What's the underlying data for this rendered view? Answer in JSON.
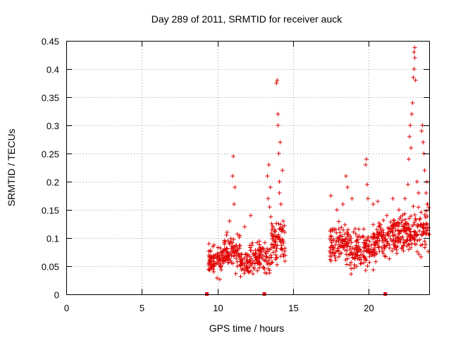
{
  "chart_data": {
    "type": "scatter",
    "title": "Day 289 of 2011, SRMTID for receiver auck",
    "xlabel": "GPS time / hours",
    "ylabel": "SRMTID / TECUs",
    "xlim": [
      0,
      24
    ],
    "ylim": [
      0,
      0.45
    ],
    "grid": true,
    "marker": "+",
    "marker_color": "#e00000",
    "x_ticks": [
      {
        "value": 0,
        "label": "0"
      },
      {
        "value": 5,
        "label": "5"
      },
      {
        "value": 10,
        "label": "10"
      },
      {
        "value": 15,
        "label": "15"
      },
      {
        "value": 20,
        "label": "20"
      }
    ],
    "y_ticks": [
      {
        "value": 0,
        "label": "0"
      },
      {
        "value": 0.05,
        "label": "0.05"
      },
      {
        "value": 0.1,
        "label": "0.1"
      },
      {
        "value": 0.15,
        "label": "0.15"
      },
      {
        "value": 0.2,
        "label": "0.2"
      },
      {
        "value": 0.25,
        "label": "0.25"
      },
      {
        "value": 0.3,
        "label": "0.3"
      },
      {
        "value": 0.35,
        "label": "0.35"
      },
      {
        "value": 0.4,
        "label": "0.4"
      },
      {
        "value": 0.45,
        "label": "0.45"
      }
    ],
    "gap_markers": [
      9.3,
      13.1,
      21.1
    ],
    "clusters": [
      {
        "x0": 9.4,
        "x1": 10.4,
        "n": 80,
        "base": 0.06,
        "spread": 0.04
      },
      {
        "x0": 10.4,
        "x1": 11.5,
        "n": 80,
        "base": 0.075,
        "spread": 0.045
      },
      {
        "x0": 11.5,
        "x1": 12.5,
        "n": 70,
        "base": 0.06,
        "spread": 0.04
      },
      {
        "x0": 12.5,
        "x1": 13.5,
        "n": 70,
        "base": 0.065,
        "spread": 0.04
      },
      {
        "x0": 13.5,
        "x1": 14.5,
        "n": 80,
        "base": 0.09,
        "spread": 0.06
      },
      {
        "x0": 17.4,
        "x1": 18.5,
        "n": 80,
        "base": 0.09,
        "spread": 0.05
      },
      {
        "x0": 18.5,
        "x1": 19.5,
        "n": 80,
        "base": 0.08,
        "spread": 0.05
      },
      {
        "x0": 19.5,
        "x1": 20.5,
        "n": 80,
        "base": 0.085,
        "spread": 0.05
      },
      {
        "x0": 20.5,
        "x1": 21.5,
        "n": 70,
        "base": 0.1,
        "spread": 0.05
      },
      {
        "x0": 21.5,
        "x1": 22.5,
        "n": 90,
        "base": 0.11,
        "spread": 0.05
      },
      {
        "x0": 22.5,
        "x1": 24.0,
        "n": 110,
        "base": 0.11,
        "spread": 0.06
      }
    ],
    "highlights": [
      {
        "x": 10.6,
        "y": 0.105
      },
      {
        "x": 10.8,
        "y": 0.13
      },
      {
        "x": 11.0,
        "y": 0.21
      },
      {
        "x": 11.05,
        "y": 0.245
      },
      {
        "x": 11.1,
        "y": 0.16
      },
      {
        "x": 11.15,
        "y": 0.19
      },
      {
        "x": 11.8,
        "y": 0.12
      },
      {
        "x": 12.2,
        "y": 0.14
      },
      {
        "x": 13.3,
        "y": 0.21
      },
      {
        "x": 13.35,
        "y": 0.17
      },
      {
        "x": 13.4,
        "y": 0.23
      },
      {
        "x": 13.45,
        "y": 0.155
      },
      {
        "x": 13.5,
        "y": 0.19
      },
      {
        "x": 13.9,
        "y": 0.375
      },
      {
        "x": 13.95,
        "y": 0.38
      },
      {
        "x": 14.0,
        "y": 0.32
      },
      {
        "x": 14.0,
        "y": 0.3
      },
      {
        "x": 14.05,
        "y": 0.25
      },
      {
        "x": 14.1,
        "y": 0.2
      },
      {
        "x": 14.1,
        "y": 0.18
      },
      {
        "x": 14.15,
        "y": 0.27
      },
      {
        "x": 14.2,
        "y": 0.16
      },
      {
        "x": 14.3,
        "y": 0.22
      },
      {
        "x": 14.35,
        "y": 0.13
      },
      {
        "x": 17.5,
        "y": 0.175
      },
      {
        "x": 17.9,
        "y": 0.15
      },
      {
        "x": 18.3,
        "y": 0.16
      },
      {
        "x": 18.5,
        "y": 0.21
      },
      {
        "x": 18.6,
        "y": 0.19
      },
      {
        "x": 18.9,
        "y": 0.17
      },
      {
        "x": 19.8,
        "y": 0.23
      },
      {
        "x": 19.85,
        "y": 0.24
      },
      {
        "x": 19.9,
        "y": 0.195
      },
      {
        "x": 19.95,
        "y": 0.17
      },
      {
        "x": 20.3,
        "y": 0.16
      },
      {
        "x": 20.6,
        "y": 0.165
      },
      {
        "x": 21.2,
        "y": 0.14
      },
      {
        "x": 21.6,
        "y": 0.17
      },
      {
        "x": 22.0,
        "y": 0.15
      },
      {
        "x": 22.4,
        "y": 0.17
      },
      {
        "x": 22.6,
        "y": 0.195
      },
      {
        "x": 22.65,
        "y": 0.24
      },
      {
        "x": 22.7,
        "y": 0.28
      },
      {
        "x": 22.75,
        "y": 0.3
      },
      {
        "x": 22.8,
        "y": 0.26
      },
      {
        "x": 22.85,
        "y": 0.32
      },
      {
        "x": 22.9,
        "y": 0.34
      },
      {
        "x": 22.95,
        "y": 0.385
      },
      {
        "x": 23.0,
        "y": 0.4
      },
      {
        "x": 23.0,
        "y": 0.43
      },
      {
        "x": 23.05,
        "y": 0.438
      },
      {
        "x": 23.05,
        "y": 0.42
      },
      {
        "x": 23.1,
        "y": 0.38
      },
      {
        "x": 23.2,
        "y": 0.2
      },
      {
        "x": 23.3,
        "y": 0.18
      },
      {
        "x": 23.5,
        "y": 0.29
      },
      {
        "x": 23.55,
        "y": 0.3
      },
      {
        "x": 23.6,
        "y": 0.27
      },
      {
        "x": 23.65,
        "y": 0.25
      },
      {
        "x": 23.7,
        "y": 0.22
      },
      {
        "x": 23.8,
        "y": 0.18
      },
      {
        "x": 23.85,
        "y": 0.2
      },
      {
        "x": 23.9,
        "y": 0.16
      }
    ]
  }
}
